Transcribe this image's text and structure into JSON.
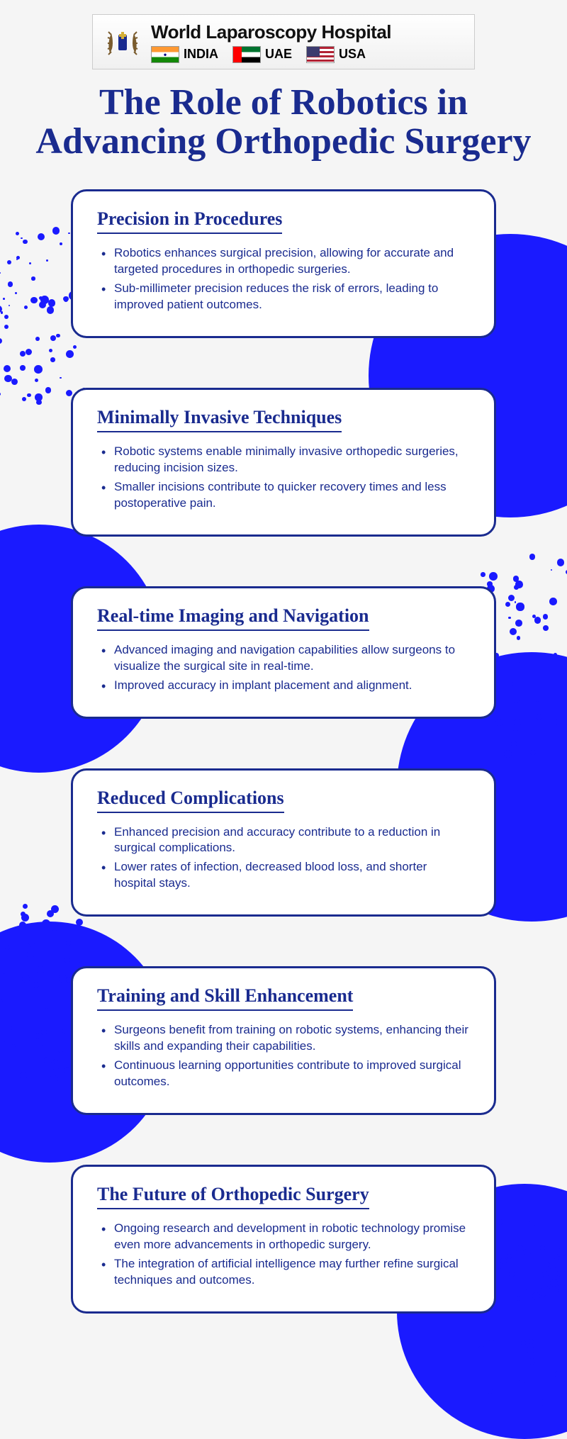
{
  "colors": {
    "primary": "#1a2b8f",
    "accent": "#1a1aff",
    "background": "#f5f5f5",
    "card_bg": "#ffffff"
  },
  "logo": {
    "title": "World Laparoscopy Hospital",
    "countries": [
      {
        "name": "INDIA"
      },
      {
        "name": "UAE"
      },
      {
        "name": "USA"
      }
    ]
  },
  "title": "The Role of Robotics in Advancing Orthopedic Surgery",
  "cards": [
    {
      "heading": "Precision in Procedures",
      "bullets": [
        "Robotics enhances surgical precision, allowing for accurate and targeted procedures in orthopedic surgeries.",
        "Sub-millimeter precision reduces the risk of errors, leading to improved patient outcomes."
      ]
    },
    {
      "heading": "Minimally Invasive Techniques",
      "bullets": [
        "Robotic systems enable minimally invasive orthopedic surgeries, reducing incision sizes.",
        "Smaller incisions contribute to quicker recovery times and less postoperative pain."
      ]
    },
    {
      "heading": "Real-time Imaging and Navigation",
      "bullets": [
        "Advanced imaging and navigation capabilities allow surgeons to visualize the surgical site in real-time.",
        "Improved accuracy in implant placement and alignment."
      ]
    },
    {
      "heading": "Reduced Complications",
      "bullets": [
        "Enhanced precision and accuracy contribute to a reduction in surgical complications.",
        "Lower rates of infection, decreased blood loss, and shorter hospital stays."
      ]
    },
    {
      "heading": "Training and Skill Enhancement",
      "bullets": [
        "Surgeons benefit from training on robotic systems, enhancing their skills and expanding their capabilities.",
        "Continuous learning opportunities contribute to improved surgical outcomes."
      ]
    },
    {
      "heading": "The Future of Orthopedic Surgery",
      "bullets": [
        "Ongoing research and development in robotic technology promise even more advancements in orthopedic surgery.",
        "The integration of artificial intelligence may further refine surgical techniques and outcomes."
      ]
    }
  ]
}
